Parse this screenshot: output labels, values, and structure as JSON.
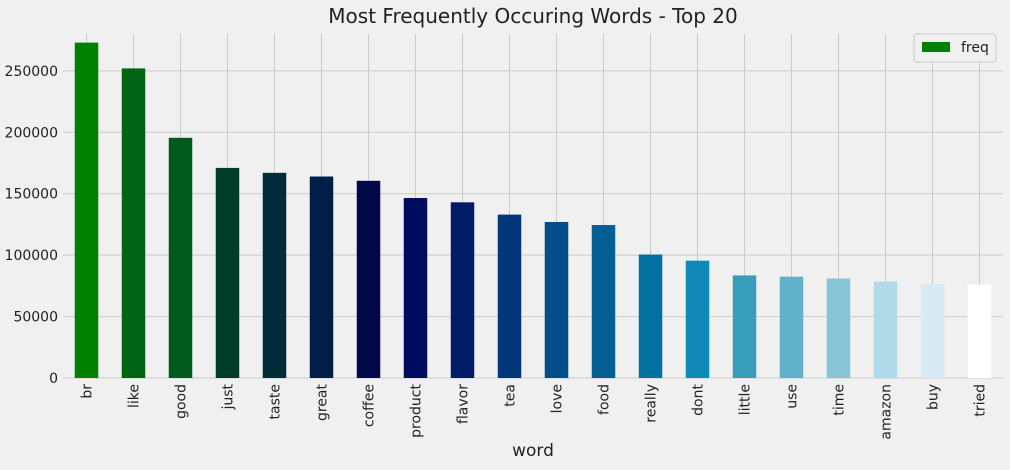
{
  "chart_data": {
    "type": "bar",
    "title": "Most Frequently Occuring Words - Top 20",
    "xlabel": "word",
    "ylabel": "",
    "ylim": [
      0,
      280000
    ],
    "yticks": [
      0,
      50000,
      100000,
      150000,
      200000,
      250000
    ],
    "grid": true,
    "legend_position": "top-right",
    "categories": [
      "br",
      "like",
      "good",
      "just",
      "taste",
      "great",
      "coffee",
      "product",
      "flavor",
      "tea",
      "love",
      "food",
      "really",
      "dont",
      "little",
      "use",
      "time",
      "amazon",
      "buy",
      "tried"
    ],
    "series": [
      {
        "name": "freq",
        "values": [
          273000,
          252000,
          195500,
          171000,
          167000,
          164000,
          160500,
          146500,
          143000,
          133000,
          127000,
          124500,
          100500,
          95500,
          83500,
          82500,
          81000,
          78500,
          76500,
          76000
        ]
      }
    ],
    "bar_colors": [
      "#008000",
      "#006414",
      "#005a1e",
      "#003d28",
      "#002b39",
      "#001e46",
      "#00084a",
      "#000c5e",
      "#021c6b",
      "#01377a",
      "#024d8a",
      "#045f95",
      "#0270a0",
      "#0f89b6",
      "#389db8",
      "#62b1ca",
      "#88c3d6",
      "#b1dae8",
      "#d8eaf4",
      "#ffffff"
    ],
    "legend_color": "#008000"
  }
}
